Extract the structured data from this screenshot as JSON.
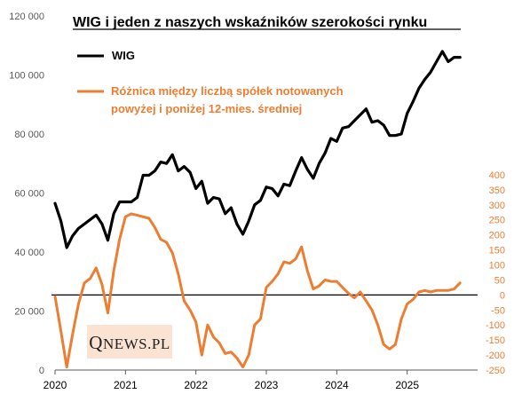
{
  "chart_data": {
    "type": "line",
    "title": "WIG i jeden z naszych wskaźników szerokości rynku",
    "x_ticks": [
      "2020",
      "2021",
      "2022",
      "2023",
      "2024",
      "2025"
    ],
    "x_range": [
      "2020-01",
      "2025-12"
    ],
    "y_left": {
      "range": [
        0,
        120000
      ],
      "ticks": [
        0,
        20000,
        40000,
        60000,
        80000,
        100000,
        120000
      ],
      "tick_labels": [
        "0",
        "20 000",
        "40 000",
        "60 000",
        "80 000",
        "100 000",
        "120 000"
      ]
    },
    "y_right": {
      "range": [
        -250,
        450
      ],
      "ticks": [
        -250,
        -200,
        -150,
        -100,
        -50,
        0,
        50,
        100,
        150,
        200,
        250,
        300,
        350,
        400
      ],
      "tick_labels": [
        "-250",
        "-200",
        "-150",
        "-100",
        "-50",
        "0",
        "50",
        "100",
        "150",
        "200",
        "250",
        "300",
        "350",
        "400"
      ]
    },
    "reference_line": {
      "axis": "right",
      "value": 0
    },
    "grid": false,
    "legend_position": "top-left",
    "series": [
      {
        "name": "WIG",
        "axis": "left",
        "color": "#000000",
        "x": [
          "2020-01",
          "2020-02",
          "2020-03",
          "2020-04",
          "2020-05",
          "2020-06",
          "2020-07",
          "2020-08",
          "2020-09",
          "2020-10",
          "2020-11",
          "2020-12",
          "2021-01",
          "2021-02",
          "2021-03",
          "2021-04",
          "2021-05",
          "2021-06",
          "2021-07",
          "2021-08",
          "2021-09",
          "2021-10",
          "2021-11",
          "2021-12",
          "2022-01",
          "2022-02",
          "2022-03",
          "2022-04",
          "2022-05",
          "2022-06",
          "2022-07",
          "2022-08",
          "2022-09",
          "2022-10",
          "2022-11",
          "2022-12",
          "2023-01",
          "2023-02",
          "2023-03",
          "2023-04",
          "2023-05",
          "2023-06",
          "2023-07",
          "2023-08",
          "2023-09",
          "2023-10",
          "2023-11",
          "2023-12",
          "2024-01",
          "2024-02",
          "2024-03",
          "2024-04",
          "2024-05",
          "2024-06",
          "2024-07",
          "2024-08",
          "2024-09",
          "2024-10",
          "2024-11",
          "2024-12",
          "2025-01",
          "2025-02",
          "2025-03",
          "2025-04",
          "2025-05",
          "2025-06",
          "2025-07",
          "2025-08",
          "2025-09",
          "2025-10"
        ],
        "values": [
          56500,
          50500,
          41500,
          45500,
          48000,
          49500,
          51000,
          52500,
          49500,
          44000,
          53000,
          57000,
          57000,
          57000,
          58500,
          66000,
          66000,
          67500,
          70500,
          70000,
          73000,
          67500,
          69000,
          67000,
          61500,
          64000,
          56500,
          58500,
          58000,
          53000,
          55000,
          49500,
          46000,
          50500,
          56000,
          57500,
          62000,
          61500,
          59000,
          63000,
          62500,
          67500,
          72000,
          68000,
          65000,
          70000,
          73500,
          78500,
          77500,
          82000,
          82500,
          84500,
          86500,
          88500,
          84000,
          84500,
          83000,
          79500,
          79500,
          80000,
          87000,
          91000,
          95500,
          98500,
          101000,
          104500,
          108000,
          104500,
          106000,
          106000
        ]
      },
      {
        "name": "Różnica między liczbą spółek notowanych powyżej i poniżej 12-mies. średniej",
        "axis": "right",
        "color": "#ED7D31",
        "x": [
          "2020-01",
          "2020-02",
          "2020-03",
          "2020-04",
          "2020-05",
          "2020-06",
          "2020-07",
          "2020-08",
          "2020-09",
          "2020-10",
          "2020-11",
          "2020-12",
          "2021-01",
          "2021-02",
          "2021-03",
          "2021-04",
          "2021-05",
          "2021-06",
          "2021-07",
          "2021-08",
          "2021-09",
          "2021-10",
          "2021-11",
          "2021-12",
          "2022-01",
          "2022-02",
          "2022-03",
          "2022-04",
          "2022-05",
          "2022-06",
          "2022-07",
          "2022-08",
          "2022-09",
          "2022-10",
          "2022-11",
          "2022-12",
          "2023-01",
          "2023-02",
          "2023-03",
          "2023-04",
          "2023-05",
          "2023-06",
          "2023-07",
          "2023-08",
          "2023-09",
          "2023-10",
          "2023-11",
          "2023-12",
          "2024-01",
          "2024-02",
          "2024-03",
          "2024-04",
          "2024-05",
          "2024-06",
          "2024-07",
          "2024-08",
          "2024-09",
          "2024-10",
          "2024-11",
          "2024-12",
          "2025-01",
          "2025-02",
          "2025-03",
          "2025-04",
          "2025-05",
          "2025-06",
          "2025-07",
          "2025-08",
          "2025-09",
          "2025-10"
        ],
        "values": [
          -5,
          -120,
          -240,
          -130,
          -30,
          40,
          55,
          90,
          35,
          -60,
          80,
          185,
          260,
          270,
          265,
          260,
          255,
          225,
          185,
          175,
          140,
          70,
          -20,
          -50,
          -90,
          -200,
          -100,
          -140,
          -160,
          -195,
          -190,
          -210,
          -240,
          -200,
          -100,
          -80,
          25,
          45,
          70,
          110,
          105,
          120,
          160,
          80,
          20,
          30,
          50,
          45,
          45,
          25,
          5,
          -10,
          10,
          -20,
          -50,
          -100,
          -165,
          -180,
          -165,
          -80,
          -30,
          -15,
          10,
          15,
          10,
          15,
          15,
          15,
          20,
          40
        ]
      }
    ]
  },
  "legend": {
    "wig_label": "WIG",
    "diff_label_line1": "Różnica między liczbą spółek notowanych",
    "diff_label_line2": "powyżej i poniżej 12-mies. średniej"
  },
  "logo": {
    "text_big": "Q",
    "text_rest": "NEWS.PL"
  }
}
